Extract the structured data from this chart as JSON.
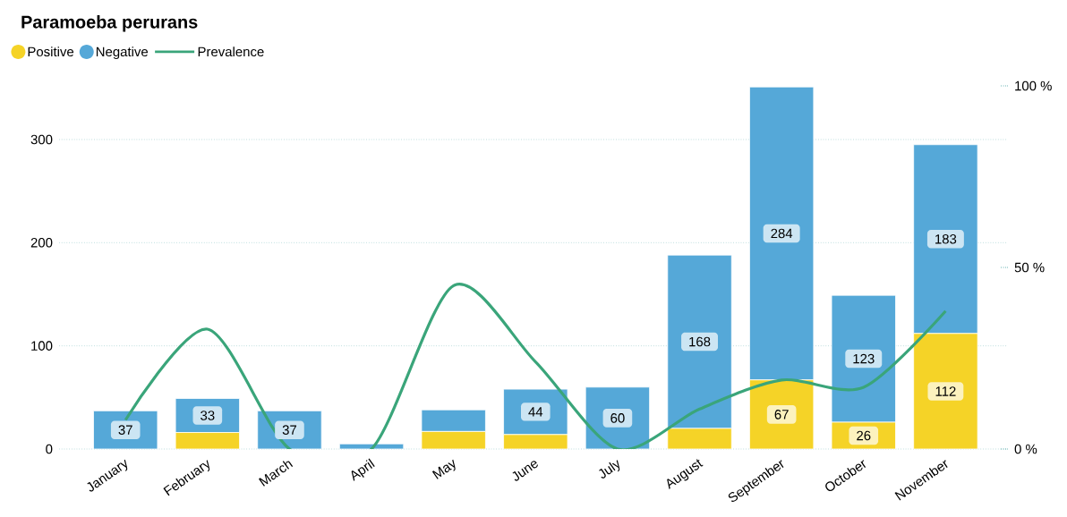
{
  "chart_data": {
    "type": "bar",
    "title": "Paramoeba perurans",
    "stacked": true,
    "categories": [
      "January",
      "February",
      "March",
      "April",
      "May",
      "June",
      "July",
      "August",
      "September",
      "October",
      "November"
    ],
    "series": [
      {
        "name": "Positive",
        "color": "#f5d327",
        "values": [
          0,
          16,
          0,
          0,
          17,
          14,
          0,
          20,
          67,
          26,
          112
        ],
        "value_labels": [
          null,
          null,
          null,
          null,
          null,
          null,
          null,
          null,
          "67",
          "26",
          "112"
        ]
      },
      {
        "name": "Negative",
        "color": "#55a8d8",
        "values": [
          37,
          33,
          37,
          5,
          21,
          44,
          60,
          168,
          284,
          123,
          183
        ],
        "value_labels": [
          "37",
          "33",
          "37",
          null,
          null,
          "44",
          "60",
          "168",
          "284",
          "123",
          "183"
        ]
      },
      {
        "name": "Prevalence",
        "type": "line",
        "axis": "y2",
        "color": "#3aa57a",
        "values": [
          8,
          33,
          0,
          0,
          45,
          24,
          0,
          11,
          19,
          17,
          38
        ]
      }
    ],
    "ylim": [
      0,
      352
    ],
    "yticks": [
      0,
      100,
      200,
      300
    ],
    "y2lim": [
      0,
      100
    ],
    "y2ticks": [
      {
        "value": 0,
        "label": "0 %"
      },
      {
        "value": 50,
        "label": "50 %"
      },
      {
        "value": 100,
        "label": "100 %"
      }
    ],
    "grid": "y",
    "legend": "top left",
    "marker": "none"
  }
}
